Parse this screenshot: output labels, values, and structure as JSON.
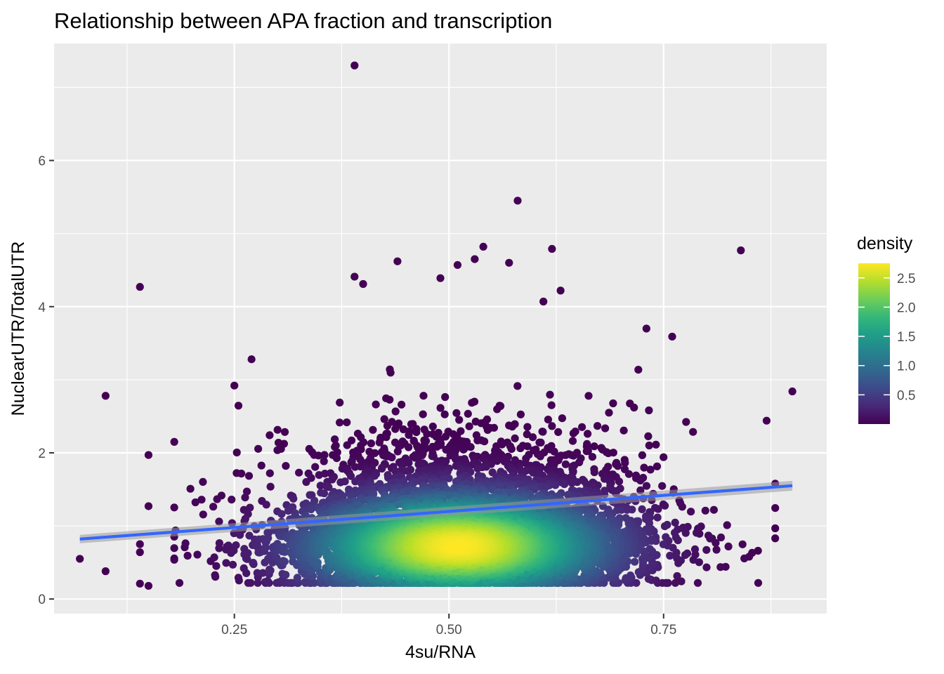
{
  "chart_data": {
    "type": "scatter",
    "title": "Relationship between APA fraction and transcription",
    "xlabel": "4su/RNA",
    "ylabel": "NuclearUTR/TotalUTR",
    "xlim": [
      0.04,
      0.94
    ],
    "ylim": [
      -0.2,
      7.6
    ],
    "x_ticks": [
      {
        "value": 0.25,
        "label": "0.25"
      },
      {
        "value": 0.5,
        "label": "0.50"
      },
      {
        "value": 0.75,
        "label": "0.75"
      }
    ],
    "y_ticks": [
      {
        "value": 0,
        "label": "0"
      },
      {
        "value": 2,
        "label": "2"
      },
      {
        "value": 4,
        "label": "4"
      },
      {
        "value": 6,
        "label": "6"
      }
    ],
    "grid": true,
    "background": "#ebebeb",
    "point_color_scale": "viridis",
    "legend": {
      "title": "density",
      "position": "right",
      "min": 0.0,
      "max": 2.75,
      "ticks": [
        {
          "value": 0.5,
          "label": "0.5"
        },
        {
          "value": 1.0,
          "label": "1.0"
        },
        {
          "value": 1.5,
          "label": "1.5"
        },
        {
          "value": 2.0,
          "label": "2.0"
        },
        {
          "value": 2.5,
          "label": "2.5"
        }
      ],
      "colors": [
        "#440154",
        "#482878",
        "#3e4a89",
        "#31688e",
        "#26828e",
        "#1f9e89",
        "#35b779",
        "#6ece58",
        "#b5de2b",
        "#fde725"
      ]
    },
    "trend_line": {
      "method": "linear fit",
      "color": "#3366ff",
      "ribbon_color": "#999999",
      "start": {
        "x": 0.07,
        "y": 0.82
      },
      "end": {
        "x": 0.9,
        "y": 1.55
      }
    },
    "outlier_points": [
      {
        "x": 0.39,
        "y": 7.3
      },
      {
        "x": 0.58,
        "y": 5.45
      },
      {
        "x": 0.84,
        "y": 4.77
      },
      {
        "x": 0.54,
        "y": 4.82
      },
      {
        "x": 0.62,
        "y": 4.79
      },
      {
        "x": 0.44,
        "y": 4.62
      },
      {
        "x": 0.14,
        "y": 4.27
      },
      {
        "x": 0.39,
        "y": 4.41
      },
      {
        "x": 0.4,
        "y": 4.31
      },
      {
        "x": 0.53,
        "y": 4.65
      },
      {
        "x": 0.51,
        "y": 4.57
      },
      {
        "x": 0.57,
        "y": 4.6
      },
      {
        "x": 0.49,
        "y": 4.39
      },
      {
        "x": 0.1,
        "y": 2.78
      },
      {
        "x": 0.9,
        "y": 2.84
      },
      {
        "x": 0.07,
        "y": 0.55
      },
      {
        "x": 0.1,
        "y": 0.38
      },
      {
        "x": 0.14,
        "y": 0.21
      },
      {
        "x": 0.15,
        "y": 0.18
      },
      {
        "x": 0.15,
        "y": 1.97
      },
      {
        "x": 0.18,
        "y": 2.15
      },
      {
        "x": 0.15,
        "y": 1.27
      },
      {
        "x": 0.14,
        "y": 0.64
      },
      {
        "x": 0.14,
        "y": 0.75
      },
      {
        "x": 0.86,
        "y": 0.66
      },
      {
        "x": 0.88,
        "y": 0.83
      },
      {
        "x": 0.87,
        "y": 2.44
      },
      {
        "x": 0.63,
        "y": 4.22
      },
      {
        "x": 0.61,
        "y": 4.07
      },
      {
        "x": 0.73,
        "y": 3.7
      },
      {
        "x": 0.76,
        "y": 3.59
      },
      {
        "x": 0.27,
        "y": 3.28
      },
      {
        "x": 0.25,
        "y": 2.92
      }
    ],
    "cluster": {
      "center": {
        "x": 0.51,
        "y": 0.72
      },
      "x_range": [
        0.18,
        0.88
      ],
      "y_range": [
        0.22,
        3.7
      ],
      "peak_density": 2.75
    }
  }
}
